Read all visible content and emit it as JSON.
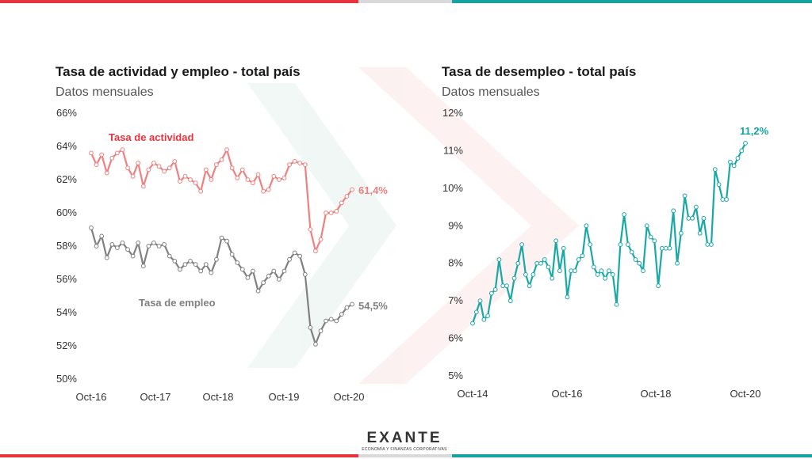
{
  "colors": {
    "red": "#e8333e",
    "teal": "#16a3a0",
    "grey_bar": "#d9d9d9",
    "activity_line": "#ee8080",
    "employment_line": "#808080",
    "activity_label": "#e8333e",
    "employment_label": "#808080",
    "unemployment_line": "#1aa8a6"
  },
  "logo": {
    "main": "EXANTE",
    "sub": "ECONOMÍA Y FINANZAS CORPORATIVAS"
  },
  "chart_data": [
    {
      "type": "line",
      "title": "Tasa de actividad y empleo - total país",
      "subtitle": "Datos mensuales",
      "yticks": [
        "50%",
        "52%",
        "54%",
        "56%",
        "58%",
        "60%",
        "62%",
        "64%",
        "66%"
      ],
      "ylim": [
        50,
        66
      ],
      "xticks": [
        "Oct-16",
        "Oct-17",
        "Oct-18",
        "Oct-19",
        "Oct-20"
      ],
      "grid": false,
      "series": [
        {
          "name": "Tasa de actividad",
          "end_label": "61,4%",
          "values": [
            63.6,
            62.9,
            63.5,
            62.4,
            63.3,
            63.6,
            63.8,
            62.7,
            62.2,
            63.0,
            61.6,
            62.6,
            63.0,
            62.8,
            62.5,
            62.7,
            63.1,
            61.9,
            62.2,
            62.0,
            61.8,
            61.3,
            62.6,
            62.0,
            62.9,
            63.2,
            63.8,
            62.7,
            62.1,
            62.6,
            62.0,
            61.8,
            62.3,
            61.3,
            61.4,
            62.2,
            62.0,
            62.1,
            62.9,
            63.1,
            63.0,
            62.9,
            59.0,
            57.7,
            58.4,
            60.0,
            60.0,
            60.1,
            60.6,
            61.0,
            61.4
          ]
        },
        {
          "name": "Tasa de empleo",
          "end_label": "54,5%",
          "values": [
            59.1,
            58.0,
            58.6,
            57.3,
            58.1,
            57.9,
            58.2,
            57.8,
            57.4,
            58.2,
            56.8,
            58.0,
            58.2,
            58.0,
            58.1,
            57.4,
            57.1,
            56.6,
            56.9,
            57.1,
            56.9,
            56.5,
            56.9,
            56.4,
            57.2,
            58.5,
            58.3,
            57.5,
            57.0,
            56.6,
            56.1,
            56.5,
            55.3,
            55.8,
            56.2,
            56.5,
            56.0,
            56.5,
            57.2,
            57.6,
            57.4,
            56.3,
            53.1,
            52.1,
            52.9,
            53.5,
            53.6,
            53.5,
            53.9,
            54.3,
            54.5
          ]
        }
      ]
    },
    {
      "type": "line",
      "title": "Tasa de desempleo - total país",
      "subtitle": "Datos mensuales",
      "yticks": [
        "5%",
        "6%",
        "7%",
        "8%",
        "9%",
        "10%",
        "11%",
        "12%"
      ],
      "ylim": [
        5,
        12
      ],
      "xticks": [
        "Oct-14",
        "Oct-16",
        "Oct-18",
        "Oct-20"
      ],
      "grid": false,
      "series": [
        {
          "name": "Tasa de desempleo",
          "end_label": "11,2%",
          "values": [
            6.4,
            6.7,
            7.0,
            6.5,
            6.6,
            7.2,
            7.3,
            8.1,
            7.4,
            7.4,
            7.0,
            7.6,
            8.0,
            8.5,
            7.7,
            7.4,
            7.7,
            8.0,
            8.0,
            8.1,
            7.9,
            7.6,
            8.6,
            7.8,
            8.4,
            7.1,
            7.8,
            7.8,
            8.1,
            8.2,
            9.0,
            8.5,
            7.9,
            7.7,
            7.8,
            7.6,
            7.8,
            7.7,
            6.9,
            8.5,
            9.3,
            8.5,
            8.3,
            8.1,
            8.0,
            7.8,
            9.0,
            8.7,
            8.6,
            7.4,
            8.4,
            8.4,
            8.4,
            9.4,
            8.0,
            8.8,
            9.8,
            9.2,
            9.2,
            9.5,
            8.8,
            9.2,
            8.5,
            8.5,
            10.5,
            10.1,
            9.7,
            9.7,
            10.7,
            10.6,
            10.8,
            11.0,
            11.2
          ]
        }
      ]
    }
  ]
}
